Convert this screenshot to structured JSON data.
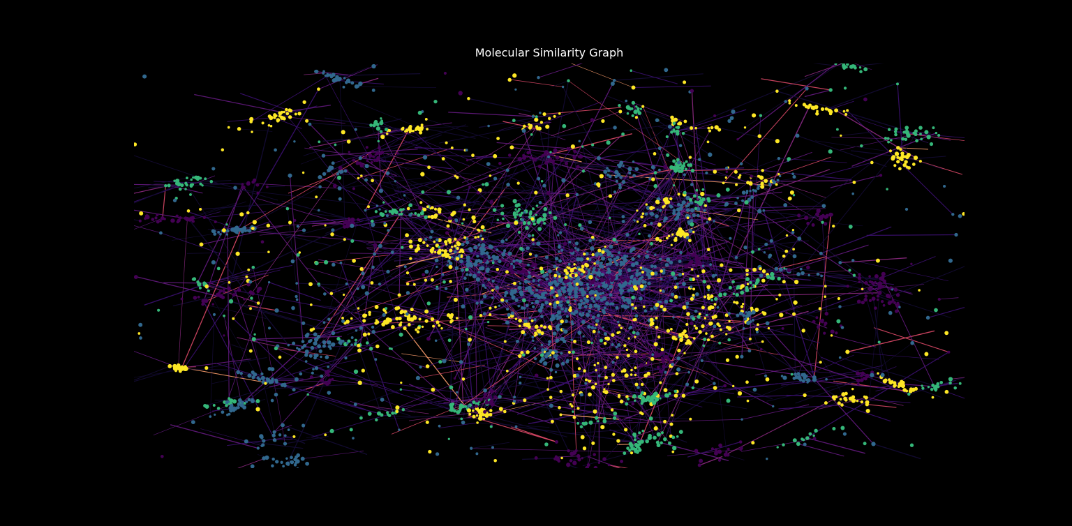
{
  "title": "Molecular Similarity Graph",
  "colors": {
    "background": "#000000",
    "title_text": "#ffffff",
    "node_palette": [
      "#440154",
      "#31688e",
      "#35b779",
      "#fde725"
    ],
    "edge_palette": [
      "#140b35",
      "#3b0f70",
      "#641a80",
      "#8c2981",
      "#de4968",
      "#fe9f6d"
    ]
  },
  "layout_style": "dense force-directed network of nodes colored by cluster; edges colored by similarity weight"
}
